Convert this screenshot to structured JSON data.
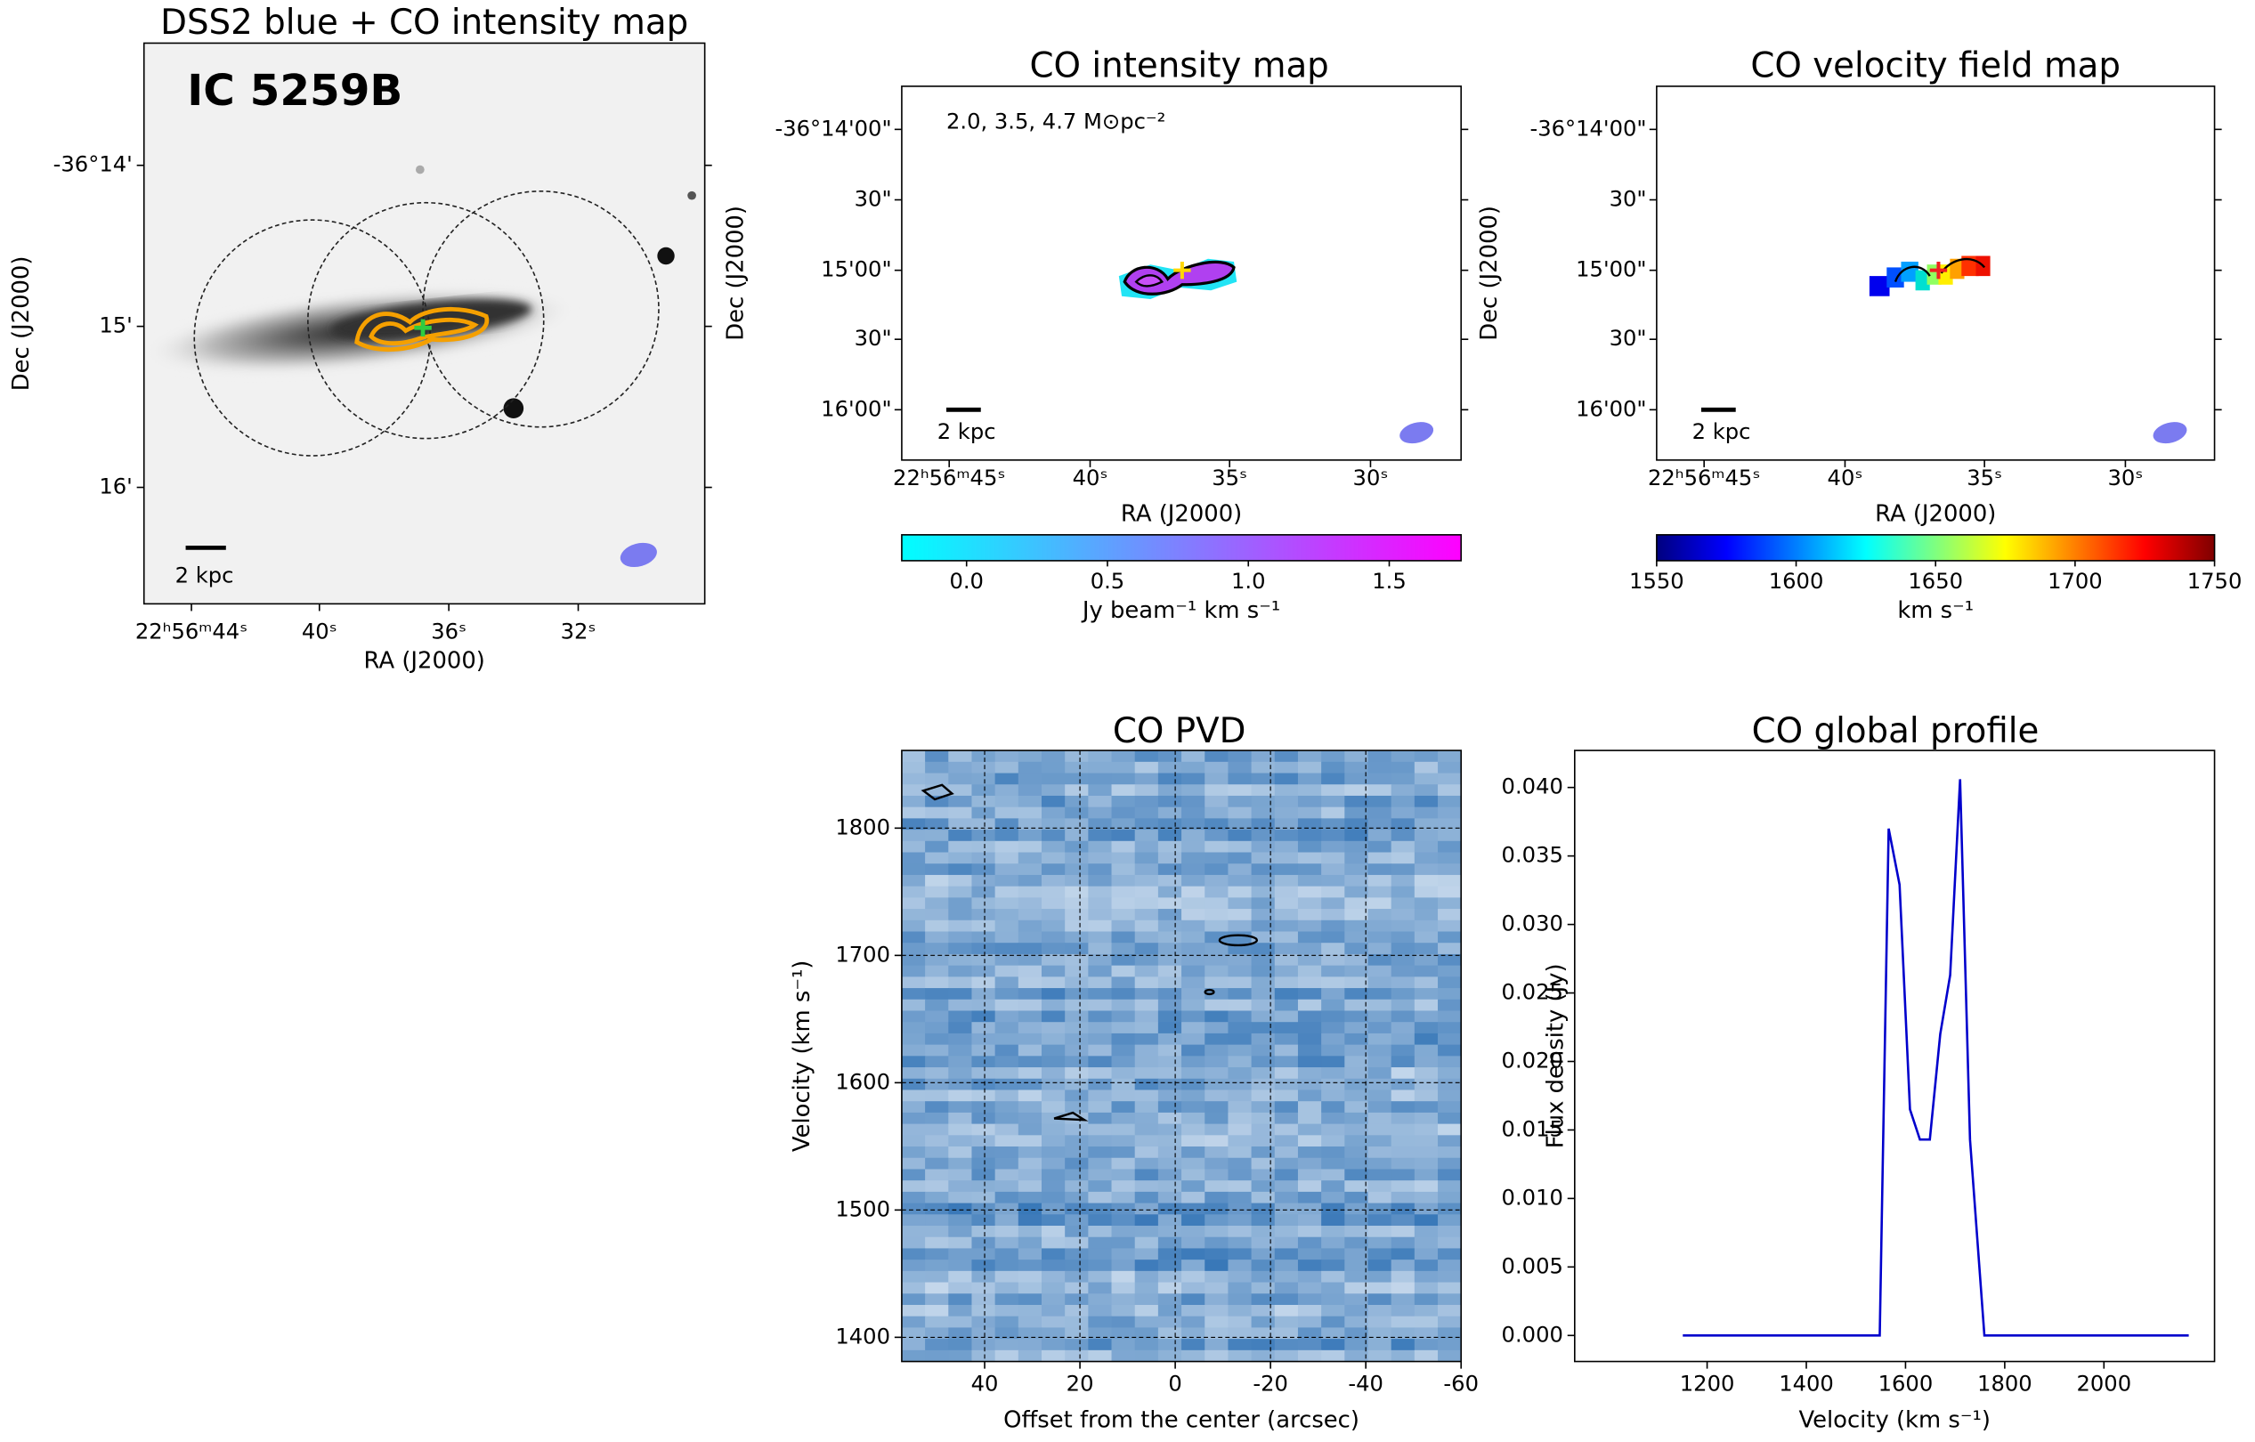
{
  "chart_data": [
    {
      "type": "image",
      "title": "DSS2 blue + CO intensity map",
      "label": "IC 5259B",
      "xlabel": "RA (J2000)",
      "ylabel": "Dec (J2000)",
      "xtick_labels": [
        "22ʰ56ᵐ44ˢ",
        "40ˢ",
        "36ˢ",
        "32ˢ"
      ],
      "ytick_labels": [
        "-36°14'",
        "15'",
        "16'"
      ],
      "scalebar": "2 kpc"
    },
    {
      "type": "image",
      "title": "CO intensity map",
      "annotation": "2.0, 3.5, 4.7 M⊙pc⁻²",
      "xlabel": "RA (J2000)",
      "ylabel": "Dec (J2000)",
      "xtick_labels": [
        "22ʰ56ᵐ45ˢ",
        "40ˢ",
        "35ˢ",
        "30ˢ"
      ],
      "ytick_labels": [
        "-36°14'00\"",
        "30\"",
        "15'00\"",
        "30\"",
        "16'00\""
      ],
      "scalebar": "2 kpc",
      "colorbar": {
        "label": "Jy beam⁻¹ km s⁻¹",
        "colors": [
          "#00ffff",
          "#ff00ff"
        ],
        "lim": [
          -0.23,
          1.755
        ],
        "ticks": [
          {
            "value": 0,
            "label": "0.0"
          },
          0.5,
          {
            "value": 1,
            "label": "1.0"
          },
          1.5
        ]
      }
    },
    {
      "type": "image",
      "title": "CO velocity field map",
      "xlabel": "RA (J2000)",
      "ylabel": "Dec (J2000)",
      "xtick_labels": [
        "22ʰ56ᵐ45ˢ",
        "40ˢ",
        "35ˢ",
        "30ˢ"
      ],
      "ytick_labels": [
        "-36°14'00\"",
        "30\"",
        "15'00\"",
        "30\"",
        "16'00\""
      ],
      "scalebar": "2 kpc",
      "colorbar": {
        "label": "km s⁻¹",
        "colors": [
          "#00007f",
          "#0000ff",
          "#007fff",
          "#00ffff",
          "#7fff7f",
          "#ffff00",
          "#ff7f00",
          "#ff0000",
          "#7f0000"
        ],
        "lim": [
          1550,
          1750
        ],
        "ticks": [
          1550,
          1600,
          1650,
          1700,
          1750
        ]
      }
    },
    {
      "type": "heatmap",
      "title": "CO PVD",
      "xlabel": "Offset from the center (arcsec)",
      "ylabel": "Velocity (km s⁻¹)",
      "xlim": [
        57.4,
        -60
      ],
      "ylim": [
        1381,
        1861
      ],
      "xticks": [
        40,
        20,
        0,
        -20,
        -40,
        -60
      ],
      "yticks": [
        1400,
        1500,
        1600,
        1700,
        1800
      ],
      "grid": true
    },
    {
      "type": "line",
      "title": "CO global profile",
      "xlabel": "Velocity (km s⁻¹)",
      "ylabel": "Flux density (Jy)",
      "x": [
        1151,
        1548,
        1566,
        1588,
        1609,
        1629,
        1649,
        1670,
        1690,
        1710,
        1730,
        1759,
        2171
      ],
      "values": [
        0,
        0,
        0.037,
        0.0329,
        0.0165,
        0.0143,
        0.0143,
        0.022,
        0.0263,
        0.0406,
        0.0143,
        0,
        0
      ],
      "color": "#0000cc",
      "xlim": [
        933,
        2223
      ],
      "ylim": [
        -0.0019,
        0.0427
      ],
      "xticks": [
        1200,
        1400,
        1600,
        1800,
        2000
      ],
      "yticks": [
        {
          "value": 0,
          "label": "0.000"
        },
        {
          "value": 0.005,
          "label": "0.005"
        },
        {
          "value": 0.01,
          "label": "0.010"
        },
        {
          "value": 0.015,
          "label": "0.015"
        },
        {
          "value": 0.02,
          "label": "0.020"
        },
        {
          "value": 0.025,
          "label": "0.025"
        },
        {
          "value": 0.03,
          "label": "0.030"
        },
        {
          "value": 0.035,
          "label": "0.035"
        },
        {
          "value": 0.04,
          "label": "0.040"
        }
      ]
    }
  ]
}
